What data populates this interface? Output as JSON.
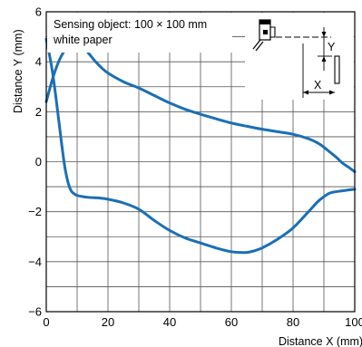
{
  "chart_data": {
    "type": "line",
    "title": "",
    "xlabel": "Distance X (mm)",
    "ylabel": "Distance Y (mm)",
    "xlim": [
      0,
      100
    ],
    "ylim": [
      -6,
      6
    ],
    "x_ticks": [
      0,
      20,
      40,
      60,
      80,
      100
    ],
    "y_ticks": [
      -6,
      -4,
      -2,
      0,
      2,
      4,
      6
    ],
    "y_tick_labels": [
      "−6",
      "−4",
      "−2",
      "0",
      "2",
      "4",
      "6"
    ],
    "grid": true,
    "annotation": {
      "line1": "Sensing object: 100 × 100 mm",
      "line2": "white paper"
    },
    "inset": {
      "y_label": "Y",
      "x_label": "X"
    },
    "color": "#1a6fb5",
    "series": [
      {
        "x": [
          0,
          2,
          4,
          6,
          8,
          10,
          12,
          14,
          16,
          18,
          20,
          25,
          30,
          35,
          40,
          45,
          50,
          55,
          60,
          65,
          70,
          75,
          80,
          85,
          88,
          90,
          92,
          94,
          96,
          98,
          100
        ],
        "y": [
          2.4,
          3.3,
          4.0,
          4.45,
          4.65,
          4.7,
          4.6,
          4.3,
          4.0,
          3.75,
          3.55,
          3.2,
          2.95,
          2.65,
          2.35,
          2.1,
          1.9,
          1.72,
          1.55,
          1.42,
          1.3,
          1.2,
          1.1,
          0.92,
          0.75,
          0.58,
          0.38,
          0.18,
          -0.05,
          -0.22,
          -0.4
        ]
      },
      {
        "x": [
          0,
          1,
          2,
          3,
          4,
          5,
          6,
          7,
          8,
          9,
          10,
          12,
          14,
          17,
          20,
          25,
          30,
          35,
          40,
          45,
          50,
          55,
          60,
          63,
          65,
          67,
          70,
          75,
          80,
          85,
          88,
          90,
          92,
          95,
          98,
          100
        ],
        "y": [
          4.9,
          4.3,
          3.6,
          2.7,
          1.7,
          0.7,
          -0.2,
          -0.8,
          -1.15,
          -1.28,
          -1.35,
          -1.4,
          -1.43,
          -1.45,
          -1.5,
          -1.65,
          -1.9,
          -2.35,
          -2.75,
          -3.05,
          -3.25,
          -3.45,
          -3.6,
          -3.63,
          -3.63,
          -3.58,
          -3.45,
          -3.1,
          -2.65,
          -2.0,
          -1.6,
          -1.4,
          -1.25,
          -1.18,
          -1.13,
          -1.1
        ]
      }
    ]
  }
}
